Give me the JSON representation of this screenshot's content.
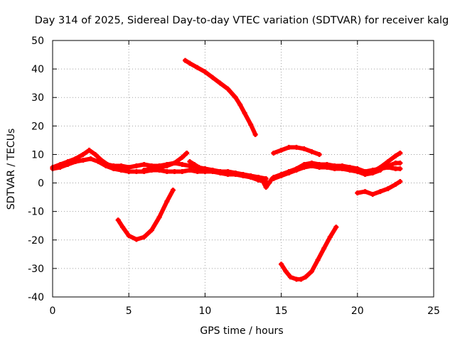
{
  "chart_data": {
    "type": "scatter",
    "title": "Day 314 of 2025, Sidereal Day-to-day VTEC variation (SDTVAR) for receiver kalg",
    "xlabel": "GPS time / hours",
    "ylabel": "SDTVAR / TECUs",
    "xlim": [
      0,
      25
    ],
    "ylim": [
      -40,
      50
    ],
    "x_ticks": [
      "0",
      "5",
      "10",
      "15",
      "20",
      "25"
    ],
    "y_ticks": [
      "50",
      "40",
      "30",
      "20",
      "10",
      "0",
      "-10",
      "-20",
      "-30",
      "-40"
    ],
    "grid": true,
    "marker_color": "#ff0000",
    "series": [
      {
        "name": "band-upper",
        "x": [
          0.0,
          0.5,
          1.0,
          1.5,
          2.0,
          2.4,
          2.8,
          3.2,
          3.6,
          4.0,
          4.5,
          5.0,
          5.5,
          6.0,
          6.5,
          7.0,
          7.5,
          8.0,
          8.5,
          9.0,
          9.5,
          10.0,
          10.5,
          11.0,
          11.5,
          12.0,
          12.5,
          13.0,
          13.5,
          14.0
        ],
        "y": [
          5.5,
          6.5,
          7.5,
          8.5,
          10.0,
          11.5,
          10.0,
          8.0,
          6.5,
          6.0,
          6.0,
          5.5,
          6.0,
          6.5,
          6.0,
          6.0,
          6.5,
          7.0,
          6.5,
          6.0,
          5.5,
          5.0,
          4.5,
          4.0,
          4.0,
          3.5,
          3.0,
          2.5,
          2.0,
          1.5
        ]
      },
      {
        "name": "band-lower",
        "x": [
          0.0,
          0.5,
          1.0,
          1.5,
          2.0,
          2.5,
          3.0,
          3.5,
          4.0,
          4.5,
          5.0,
          5.5,
          6.0,
          6.5,
          7.0,
          7.5,
          8.0,
          8.5,
          9.0,
          9.5,
          10.0,
          10.5,
          11.0,
          11.5,
          12.0,
          12.5,
          13.0,
          13.5,
          14.0
        ],
        "y": [
          5.0,
          5.5,
          6.5,
          7.5,
          8.0,
          8.5,
          7.5,
          6.0,
          5.0,
          4.5,
          4.0,
          4.0,
          4.0,
          4.5,
          4.5,
          4.0,
          4.0,
          4.0,
          4.5,
          4.0,
          4.0,
          4.0,
          3.5,
          3.0,
          3.0,
          2.5,
          2.0,
          1.0,
          0.5
        ]
      },
      {
        "name": "bump-8h",
        "x": [
          6.0,
          6.5,
          7.0,
          7.5,
          8.0,
          8.5,
          8.8
        ],
        "y": [
          4.5,
          5.0,
          5.5,
          6.0,
          7.0,
          9.0,
          10.5
        ]
      },
      {
        "name": "bump-9h",
        "x": [
          9.0,
          9.3,
          9.6,
          10.0
        ],
        "y": [
          7.5,
          6.5,
          5.5,
          4.5
        ]
      },
      {
        "name": "dip-14h",
        "x": [
          13.5,
          13.8,
          14.0,
          14.2,
          14.4
        ],
        "y": [
          2.0,
          0.5,
          -1.5,
          0.0,
          1.5
        ]
      },
      {
        "name": "band-upper-2",
        "x": [
          14.5,
          15.0,
          15.5,
          16.0,
          16.5,
          17.0,
          17.5,
          18.0,
          18.5,
          19.0,
          19.5,
          20.0,
          20.5,
          21.0,
          21.5,
          22.0,
          22.5,
          22.8
        ],
        "y": [
          2.0,
          3.0,
          4.0,
          5.0,
          6.5,
          7.0,
          6.5,
          6.5,
          6.0,
          6.0,
          5.5,
          5.0,
          4.0,
          4.5,
          5.0,
          5.5,
          5.0,
          5.0
        ]
      },
      {
        "name": "band-lower-2",
        "x": [
          14.5,
          15.0,
          15.5,
          16.0,
          16.5,
          17.0,
          17.5,
          18.0,
          18.5,
          19.0,
          19.5,
          20.0,
          20.5,
          21.0,
          21.5
        ],
        "y": [
          1.5,
          2.5,
          3.5,
          4.5,
          5.5,
          6.0,
          5.5,
          5.5,
          5.0,
          5.0,
          4.5,
          4.0,
          3.0,
          3.5,
          4.5
        ]
      },
      {
        "name": "rise-22h",
        "x": [
          21.0,
          21.5,
          22.0,
          22.5,
          22.8
        ],
        "y": [
          4.0,
          5.5,
          7.5,
          9.5,
          10.5
        ]
      },
      {
        "name": "mid-22h",
        "x": [
          21.5,
          22.0,
          22.5,
          22.8
        ],
        "y": [
          5.0,
          6.0,
          7.0,
          7.0
        ]
      },
      {
        "name": "arc-14-17",
        "x": [
          14.5,
          15.0,
          15.5,
          16.0,
          16.5,
          17.0,
          17.5
        ],
        "y": [
          10.5,
          11.5,
          12.5,
          12.5,
          12.0,
          11.0,
          10.0
        ]
      },
      {
        "name": "drop-9-13",
        "x": [
          8.7,
          9.0,
          9.5,
          10.0,
          10.5,
          11.0,
          11.5,
          12.0,
          12.3,
          12.6,
          13.0,
          13.3
        ],
        "y": [
          43.0,
          42.0,
          40.5,
          39.0,
          37.0,
          35.0,
          33.0,
          30.0,
          27.5,
          24.5,
          20.5,
          17.0
        ]
      },
      {
        "name": "trough-4-8",
        "x": [
          4.3,
          4.6,
          5.0,
          5.5,
          6.0,
          6.5,
          7.0,
          7.5,
          7.9
        ],
        "y": [
          -13.0,
          -15.5,
          -18.5,
          -19.8,
          -19.0,
          -16.5,
          -12.0,
          -6.5,
          -2.5
        ]
      },
      {
        "name": "trough-15-19",
        "x": [
          15.0,
          15.3,
          15.6,
          16.0,
          16.3,
          16.6,
          17.0,
          17.4,
          17.8,
          18.2,
          18.6
        ],
        "y": [
          -28.5,
          -31.0,
          -33.0,
          -33.8,
          -33.8,
          -33.0,
          -31.0,
          -27.0,
          -23.0,
          -19.0,
          -15.5
        ]
      },
      {
        "name": "low-20-23",
        "x": [
          20.0,
          20.5,
          21.0,
          21.5,
          22.0,
          22.5,
          22.8
        ],
        "y": [
          -3.5,
          -3.0,
          -4.0,
          -3.0,
          -2.0,
          -0.5,
          0.5
        ]
      }
    ]
  }
}
